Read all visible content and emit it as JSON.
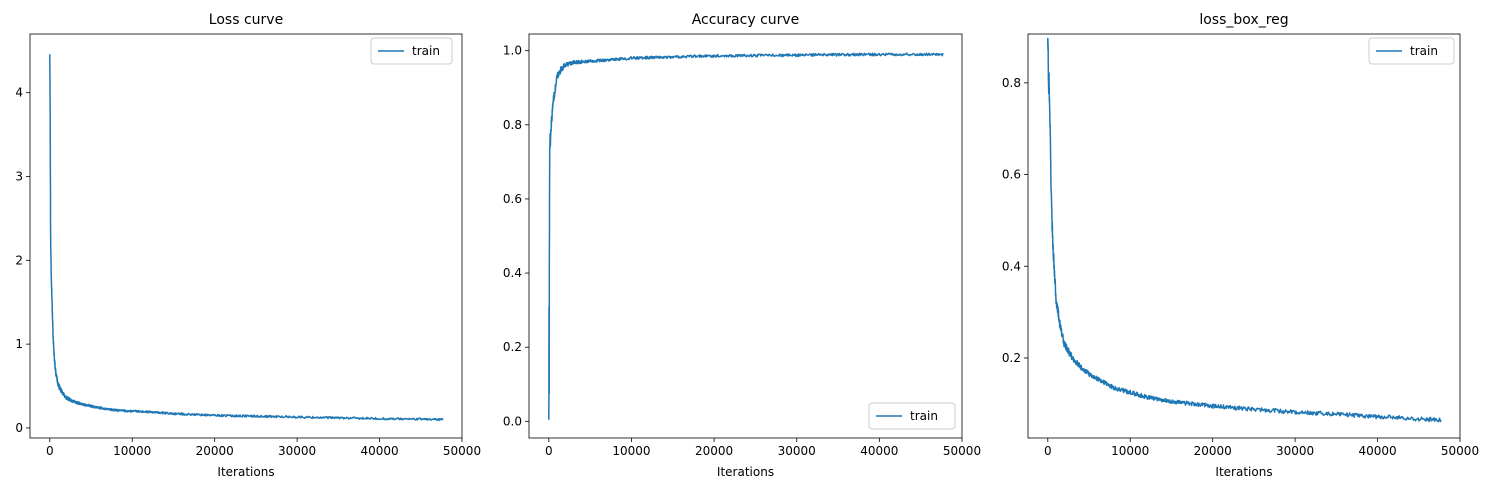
{
  "chart_data": [
    {
      "type": "line",
      "title": "Loss curve",
      "xlabel": "Iterations",
      "ylabel": "",
      "xlim": [
        -2400,
        50000
      ],
      "ylim": [
        -0.12,
        4.7
      ],
      "xticks": [
        0,
        10000,
        20000,
        30000,
        40000,
        50000
      ],
      "yticks": [
        0,
        1,
        2,
        3,
        4
      ],
      "legend": "top-right",
      "grid": false,
      "series": [
        {
          "name": "train",
          "color": "#1f77b4",
          "x": [
            0,
            50,
            100,
            150,
            200,
            300,
            400,
            500,
            700,
            1000,
            1500,
            2000,
            3000,
            4000,
            5000,
            6000,
            8000,
            10000,
            12000,
            15000,
            20000,
            25000,
            30000,
            35000,
            40000,
            45000,
            47700
          ],
          "y": [
            4.48,
            3.7,
            2.3,
            2.0,
            1.75,
            1.4,
            1.1,
            0.9,
            0.68,
            0.52,
            0.42,
            0.36,
            0.31,
            0.28,
            0.26,
            0.24,
            0.21,
            0.2,
            0.19,
            0.17,
            0.15,
            0.14,
            0.13,
            0.12,
            0.11,
            0.105,
            0.1
          ]
        }
      ]
    },
    {
      "type": "line",
      "title": "Accuracy curve",
      "xlabel": "Iterations",
      "ylabel": "",
      "xlim": [
        -2400,
        50000
      ],
      "ylim": [
        -0.045,
        1.045
      ],
      "xticks": [
        0,
        10000,
        20000,
        30000,
        40000,
        50000
      ],
      "yticks": [
        0.0,
        0.2,
        0.4,
        0.6,
        0.8,
        1.0
      ],
      "ytick_labels": [
        "0.0",
        "0.2",
        "0.4",
        "0.6",
        "0.8",
        "1.0"
      ],
      "legend": "bottom-right",
      "grid": false,
      "series": [
        {
          "name": "train",
          "color": "#1f77b4",
          "x": [
            0,
            20,
            40,
            60,
            100,
            150,
            200,
            300,
            500,
            800,
            1000,
            1500,
            2000,
            3000,
            5000,
            8000,
            10000,
            15000,
            20000,
            30000,
            40000,
            47700
          ],
          "y": [
            0.01,
            0.3,
            0.05,
            0.42,
            0.72,
            0.77,
            0.75,
            0.8,
            0.86,
            0.9,
            0.93,
            0.95,
            0.962,
            0.968,
            0.972,
            0.976,
            0.98,
            0.983,
            0.986,
            0.988,
            0.99,
            0.99
          ]
        }
      ]
    },
    {
      "type": "line",
      "title": "loss_box_reg",
      "xlabel": "Iterations",
      "ylabel": "",
      "xlim": [
        -2400,
        50000
      ],
      "ylim": [
        0.0255,
        0.9065
      ],
      "xticks": [
        0,
        10000,
        20000,
        30000,
        40000,
        50000
      ],
      "yticks": [
        0.2,
        0.4,
        0.6,
        0.8
      ],
      "legend": "top-right",
      "grid": false,
      "series": [
        {
          "name": "train",
          "color": "#1f77b4",
          "x": [
            0,
            50,
            100,
            150,
            200,
            300,
            400,
            500,
            700,
            1000,
            1500,
            2000,
            3000,
            4000,
            5000,
            6000,
            8000,
            10000,
            12000,
            15000,
            20000,
            25000,
            30000,
            35000,
            40000,
            45000,
            47700
          ],
          "y": [
            0.89,
            0.86,
            0.78,
            0.82,
            0.76,
            0.68,
            0.58,
            0.5,
            0.42,
            0.33,
            0.27,
            0.23,
            0.2,
            0.18,
            0.165,
            0.155,
            0.135,
            0.125,
            0.115,
            0.105,
            0.095,
            0.088,
            0.082,
            0.078,
            0.072,
            0.067,
            0.065
          ]
        }
      ]
    }
  ],
  "tick_labels": {
    "x": [
      "0",
      "10000",
      "20000",
      "30000",
      "40000",
      "50000"
    ]
  }
}
